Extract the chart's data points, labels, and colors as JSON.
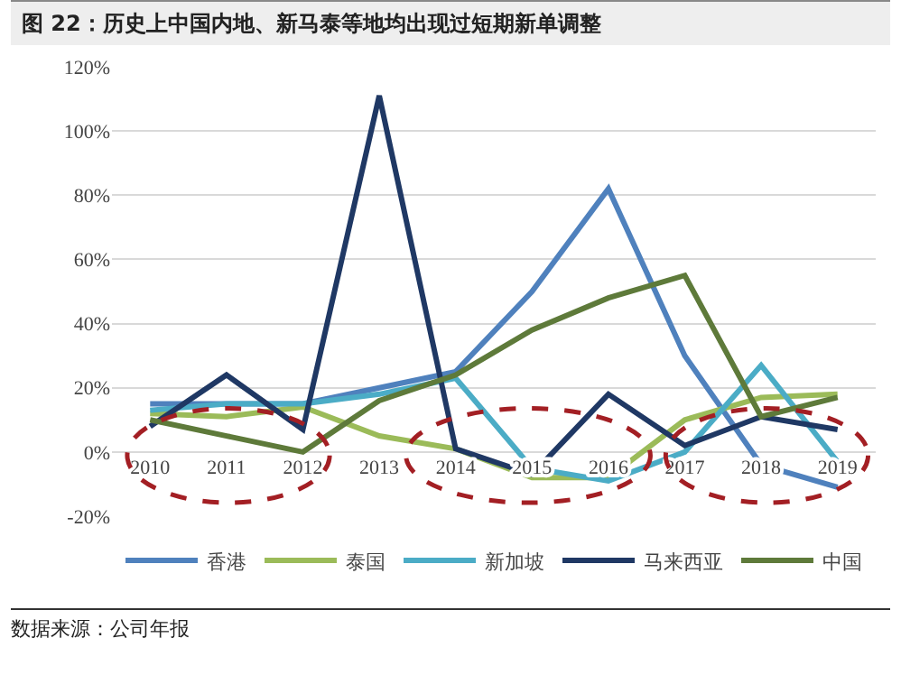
{
  "chart_data": {
    "type": "line",
    "title": "图 22：历史上中国内地、新马泰等地均出现过短期新单调整",
    "categories": [
      "2010",
      "2011",
      "2012",
      "2013",
      "2014",
      "2015",
      "2016",
      "2017",
      "2018",
      "2019"
    ],
    "series": [
      {
        "name": "香港",
        "color": "#4f81bd",
        "values": [
          15,
          15,
          15,
          20,
          25,
          50,
          82,
          30,
          -4,
          -11
        ]
      },
      {
        "name": "泰国",
        "color": "#9bbb59",
        "values": [
          12,
          11,
          14,
          5,
          1,
          -8,
          -8,
          10,
          17,
          18
        ]
      },
      {
        "name": "新加坡",
        "color": "#4bacc6",
        "values": [
          13,
          15,
          15,
          18,
          23,
          -5,
          -9,
          0,
          27,
          -3
        ]
      },
      {
        "name": "马来西亚",
        "color": "#1f3864",
        "values": [
          8,
          24,
          7,
          111,
          1,
          -7,
          18,
          2,
          11,
          7
        ]
      },
      {
        "name": "中国",
        "color": "#5e7a3a",
        "values": [
          10,
          5,
          0,
          16,
          24,
          38,
          48,
          55,
          11,
          17
        ]
      }
    ],
    "ylim": [
      -20,
      120
    ],
    "yticks": [
      {
        "value": -20,
        "label": "-20%"
      },
      {
        "value": 0,
        "label": "0%"
      },
      {
        "value": 20,
        "label": "20%"
      },
      {
        "value": 40,
        "label": "40%"
      },
      {
        "value": 60,
        "label": "60%"
      },
      {
        "value": 80,
        "label": "80%"
      },
      {
        "value": 100,
        "label": "100%"
      },
      {
        "value": 120,
        "label": "120%"
      }
    ],
    "grid": "y",
    "legend": "bottom",
    "line_style": "solid",
    "marker": "none",
    "annotations": [
      "数据来源：公司年报"
    ]
  }
}
